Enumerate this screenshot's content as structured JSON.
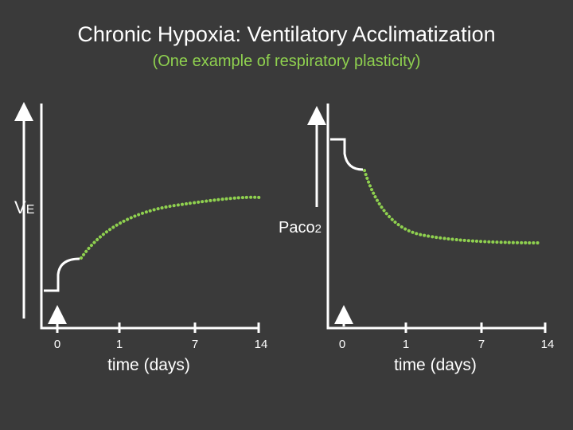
{
  "header": {
    "title": "Chronic Hypoxia: Ventilatory Acclimatization",
    "subtitle": "(One example of respiratory plasticity)"
  },
  "panels": [
    {
      "y_label": "V",
      "y_label_sub": "E",
      "ticks": [
        "0",
        "1",
        "7",
        "14"
      ],
      "x_label": "time (days)"
    },
    {
      "y_label": "Paco",
      "y_label_sub": "2",
      "ticks": [
        "0",
        "1",
        "7",
        "14"
      ],
      "x_label": "time (days)"
    }
  ]
}
